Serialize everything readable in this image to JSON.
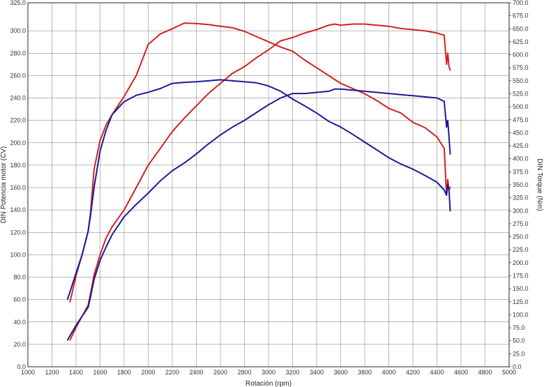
{
  "chart_data": {
    "type": "line",
    "title": "",
    "xlabel": "Rotación (rpm)",
    "ylabel_left": "DIN Potencia motor (CV)",
    "ylabel_right": "DIN Torque (Nm)",
    "xlim": [
      1000,
      5000
    ],
    "ylim_left": [
      0,
      325
    ],
    "ylim_right": [
      0,
      700
    ],
    "x_ticks": [
      1000,
      1200,
      1400,
      1600,
      1800,
      2000,
      2200,
      2400,
      2600,
      2800,
      3000,
      3200,
      3400,
      3600,
      3800,
      4000,
      4200,
      4400,
      4600,
      4800,
      5000
    ],
    "y_left_ticks": [
      "0.0",
      "20.0",
      "40.0",
      "60.0",
      "80.0",
      "100.0",
      "120.0",
      "140.0",
      "160.0",
      "180.0",
      "200.0",
      "220.0",
      "240.0",
      "260.0",
      "280.0",
      "300.0",
      "325.0"
    ],
    "y_right_ticks": [
      "0.0",
      "25.0",
      "50.0",
      "75.0",
      "100.0",
      "125.0",
      "150.0",
      "175.0",
      "200.0",
      "225.0",
      "250.0",
      "275.0",
      "300.0",
      "325.0",
      "350.0",
      "375.0",
      "400.0",
      "425.0",
      "450.0",
      "475.0",
      "500.0",
      "525.0",
      "550.0",
      "575.0",
      "600.0",
      "625.0",
      "650.0",
      "675.0",
      "700.0"
    ],
    "grid": true,
    "series": [
      {
        "color": "#d42020",
        "axis": "left",
        "x": [
          1350,
          1400,
          1450,
          1500,
          1520,
          1550,
          1600,
          1650,
          1700,
          1800,
          1900,
          2000,
          2100,
          2200,
          2300,
          2400,
          2500,
          2600,
          2700,
          2800,
          2900,
          3000,
          3100,
          3200,
          3300,
          3400,
          3500,
          3550,
          3600,
          3700,
          3800,
          3900,
          4000,
          4100,
          4200,
          4300,
          4400,
          4460,
          4480,
          4490,
          4500,
          4510
        ],
        "y": [
          24,
          35,
          45,
          55,
          65,
          82,
          100,
          115,
          125,
          140,
          160,
          180,
          195,
          210,
          222,
          233,
          244,
          253,
          262,
          268,
          276,
          283,
          291,
          294,
          298,
          301,
          305,
          306,
          305,
          306,
          306,
          305,
          304,
          302,
          301,
          300,
          298,
          296,
          270,
          280,
          268,
          265
        ]
      },
      {
        "color": "#d42020",
        "axis": "right",
        "x": [
          1350,
          1400,
          1450,
          1500,
          1520,
          1550,
          1600,
          1650,
          1700,
          1800,
          1900,
          2000,
          2100,
          2200,
          2300,
          2400,
          2500,
          2600,
          2700,
          2800,
          2900,
          3000,
          3100,
          3200,
          3300,
          3400,
          3500,
          3600,
          3700,
          3800,
          3900,
          4000,
          4100,
          4200,
          4300,
          4400,
          4460,
          4480,
          4490,
          4500,
          4510
        ],
        "y": [
          125,
          175,
          215,
          260,
          295,
          380,
          435,
          465,
          485,
          520,
          560,
          620,
          640,
          650,
          661,
          660,
          658,
          655,
          652,
          645,
          635,
          625,
          615,
          607,
          590,
          575,
          560,
          545,
          535,
          525,
          512,
          497,
          488,
          470,
          460,
          442,
          420,
          330,
          360,
          340,
          345
        ]
      },
      {
        "color": "#1a1a9a",
        "axis": "left",
        "x": [
          1330,
          1400,
          1450,
          1500,
          1520,
          1550,
          1600,
          1650,
          1700,
          1800,
          1900,
          2000,
          2100,
          2200,
          2300,
          2400,
          2500,
          2600,
          2700,
          2800,
          2900,
          3000,
          3100,
          3200,
          3300,
          3400,
          3500,
          3550,
          3600,
          3700,
          3800,
          3900,
          4000,
          4100,
          4200,
          4300,
          4400,
          4460,
          4480,
          4490,
          4500,
          4510
        ],
        "y": [
          24,
          37,
          45,
          53,
          62,
          78,
          95,
          107,
          118,
          134,
          145,
          155,
          166,
          175,
          182,
          190,
          199,
          207,
          214,
          220,
          227,
          234,
          240,
          244,
          244,
          245,
          246,
          248,
          248,
          247,
          246,
          245,
          244,
          243,
          242,
          241,
          240,
          237,
          214,
          220,
          205,
          190
        ]
      },
      {
        "color": "#1a1a9a",
        "axis": "right",
        "x": [
          1330,
          1400,
          1450,
          1500,
          1520,
          1550,
          1600,
          1650,
          1700,
          1800,
          1900,
          2000,
          2100,
          2200,
          2300,
          2400,
          2500,
          2600,
          2700,
          2800,
          2900,
          3000,
          3100,
          3200,
          3300,
          3400,
          3500,
          3600,
          3700,
          3800,
          3900,
          4000,
          4100,
          4200,
          4300,
          4400,
          4460,
          4480,
          4490,
          4500,
          4510
        ],
        "y": [
          130,
          180,
          215,
          260,
          290,
          345,
          415,
          455,
          485,
          510,
          522,
          528,
          535,
          545,
          547,
          548,
          550,
          552,
          550,
          548,
          546,
          540,
          530,
          515,
          502,
          488,
          472,
          461,
          447,
          432,
          417,
          402,
          390,
          380,
          368,
          355,
          340,
          330,
          350,
          340,
          300
        ]
      }
    ]
  }
}
